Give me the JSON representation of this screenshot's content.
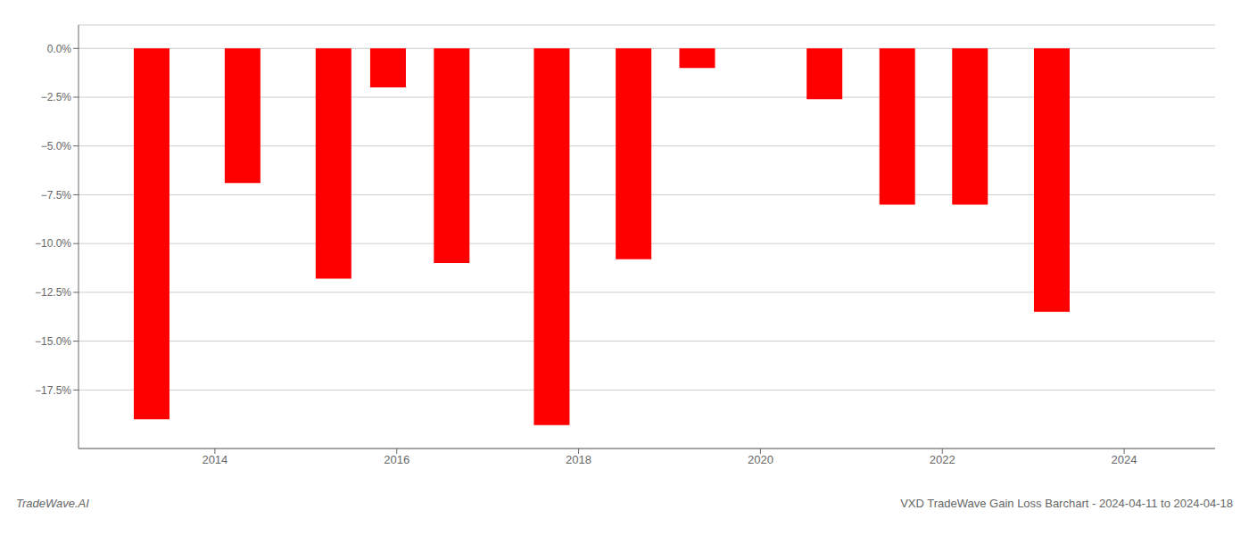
{
  "chart_data": {
    "type": "bar",
    "title": "VXD TradeWave Gain Loss Barchart - 2024-04-11 to 2024-04-18",
    "annotations": [
      "TradeWave.AI"
    ],
    "x": [
      2013.3,
      2014.3,
      2015.3,
      2015.9,
      2016.6,
      2017.7,
      2018.6,
      2019.3,
      2020.7,
      2021.5,
      2022.3,
      2023.2
    ],
    "values": [
      -19.0,
      -6.9,
      -11.8,
      -2.0,
      -11.0,
      -19.3,
      -10.8,
      -1.0,
      -2.6,
      -8.0,
      -8.0,
      -13.5
    ],
    "color": "#ff0000",
    "xlim": [
      2012.5,
      2025.0
    ],
    "xticks": [
      2014,
      2016,
      2018,
      2020,
      2022,
      2024
    ],
    "ylim": [
      -20.5,
      1.2
    ],
    "yticks": [
      {
        "value": 0.0,
        "label": "0.0%"
      },
      {
        "value": -2.5,
        "label": "−2.5%"
      },
      {
        "value": -5.0,
        "label": "−5.0%"
      },
      {
        "value": -7.5,
        "label": "−7.5%"
      },
      {
        "value": -10.0,
        "label": "−10.0%"
      },
      {
        "value": -12.5,
        "label": "−12.5%"
      },
      {
        "value": -15.0,
        "label": "−15.0%"
      },
      {
        "value": -17.5,
        "label": "−17.5%"
      }
    ],
    "grid": true
  }
}
